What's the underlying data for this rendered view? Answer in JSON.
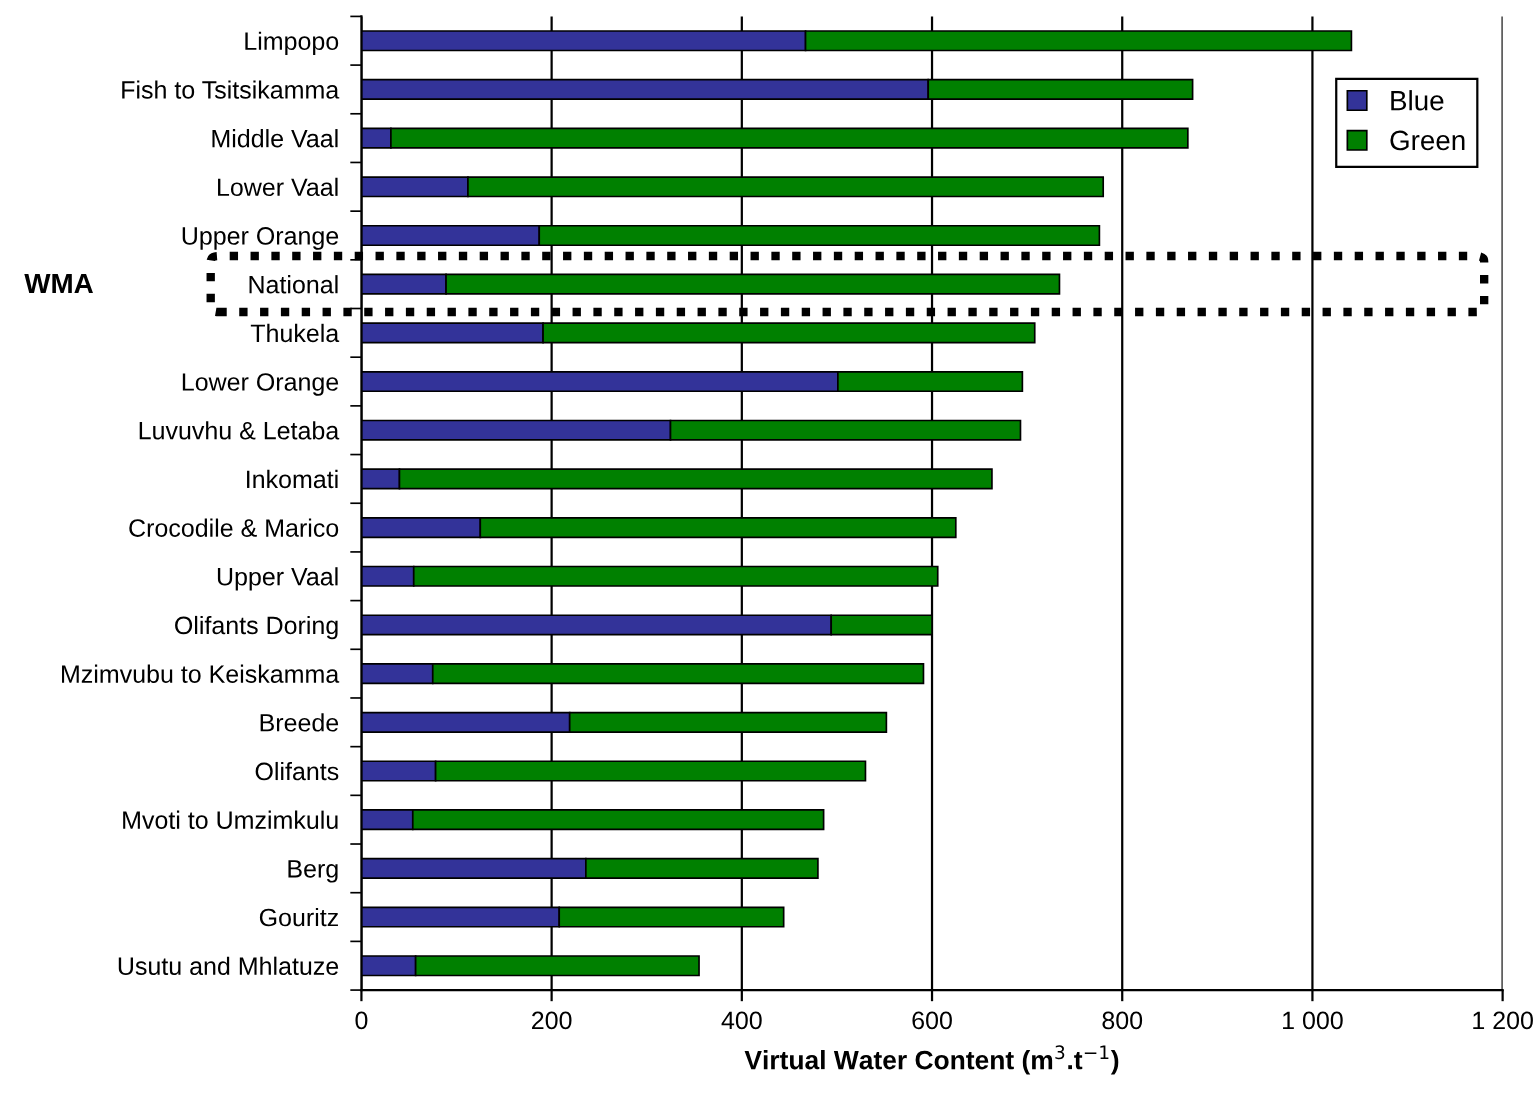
{
  "chart_data": {
    "type": "bar",
    "orientation": "horizontal",
    "stacked": true,
    "xlabel": "Virtual Water Content (m$^{3}$.t$^{−1}$)",
    "ylabel": "WMA",
    "categories": [
      "Limpopo",
      "Fish to Tsitsikamma",
      "Middle Vaal",
      "Lower Vaal",
      "Upper Orange",
      "National",
      "Thukela",
      "Lower Orange",
      "Luvuvhu & Letaba",
      "Inkomati",
      "Crocodile & Marico",
      "Upper Vaal",
      "Olifants Doring",
      "Mzimvubu to Keiskamma",
      "Breede",
      "Olifants",
      "Mvoti to Umzimkulu",
      "Berg",
      "Gouritz",
      "Usutu and Mhlatuze"
    ],
    "series": [
      {
        "name": "Blue",
        "color": "#333399",
        "values": [
          467,
          596,
          31,
          112,
          187,
          89,
          191,
          501,
          325,
          40,
          125,
          55,
          494,
          75,
          219,
          78,
          54,
          236,
          208,
          57
        ]
      },
      {
        "name": "Green",
        "color": "#008000",
        "values": [
          574,
          278,
          838,
          668,
          589,
          645,
          517,
          194,
          368,
          623,
          500,
          551,
          106,
          516,
          333,
          452,
          432,
          244,
          236,
          298
        ]
      }
    ],
    "xlim": [
      0,
      1200
    ],
    "xticks": [
      0,
      200,
      400,
      600,
      800,
      {
        "value": 1000,
        "label": "1 000"
      },
      {
        "value": 1200,
        "label": "1 200"
      }
    ],
    "grid": "x",
    "legend": "top right"
  }
}
